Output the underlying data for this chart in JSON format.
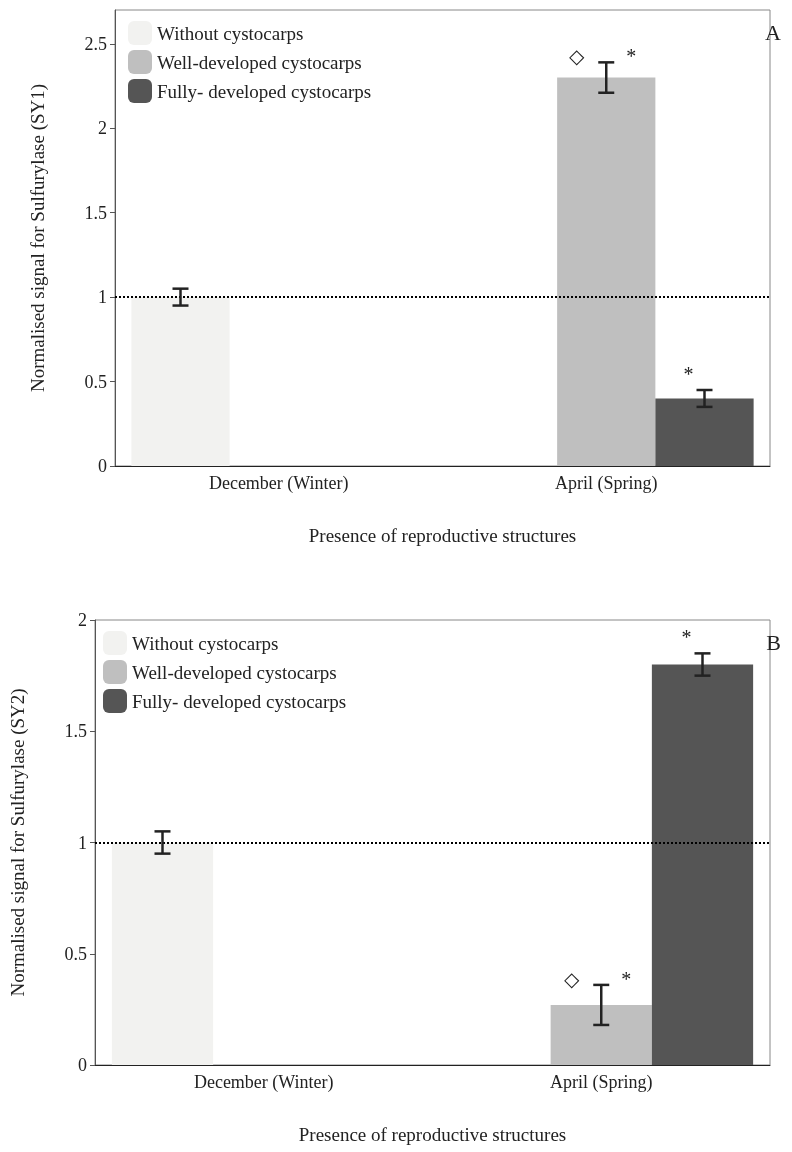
{
  "chart_data": [
    {
      "type": "bar",
      "title": "A",
      "xlabel": "Presence of reproductive structures",
      "ylabel": "Normalised signal for Sulfurylase (SY1)",
      "categories": [
        "December (Winter)",
        "April (Spring)"
      ],
      "series": [
        {
          "name": "Without cystocarps",
          "color": "#f2f2f0",
          "values": [
            1.0,
            null
          ],
          "errors": [
            0.05,
            null
          ]
        },
        {
          "name": "Well-developed cystocarps",
          "color": "#bfbfbf",
          "values": [
            null,
            2.3
          ],
          "errors": [
            null,
            0.09
          ]
        },
        {
          "name": "Fully- developed cystocarps",
          "color": "#555555",
          "values": [
            null,
            0.4
          ],
          "errors": [
            null,
            0.05
          ]
        }
      ],
      "ylim": [
        0,
        2.7
      ],
      "yticks": [
        0,
        0.5,
        1,
        1.5,
        2,
        2.5
      ],
      "grid": false,
      "legend": "top left",
      "ref_lines": [
        {
          "axis": "y",
          "value": 1,
          "line_style": "dotted",
          "color": "#000000"
        }
      ],
      "annotations": [
        {
          "text": "◇",
          "x": "April (Spring)",
          "y": 2.39
        },
        {
          "text": "*",
          "x": "April (Spring)",
          "y": 2.39
        },
        "*"
      ]
    },
    {
      "type": "bar",
      "title": "B",
      "xlabel": "Presence of reproductive structures",
      "ylabel": "Normalised signal for Sulfurylase (SY2)",
      "categories": [
        "December (Winter)",
        "April (Spring)"
      ],
      "series": [
        {
          "name": "Without cystocarps",
          "color": "#f2f2f0",
          "values": [
            1.0,
            null
          ],
          "errors": [
            0.05,
            null
          ]
        },
        {
          "name": "Well-developed cystocarps",
          "color": "#bfbfbf",
          "values": [
            null,
            0.27
          ],
          "errors": [
            null,
            0.09
          ]
        },
        {
          "name": "Fully- developed cystocarps",
          "color": "#555555",
          "values": [
            null,
            1.8
          ],
          "errors": [
            null,
            0.05
          ]
        }
      ],
      "ylim": [
        0,
        2
      ],
      "yticks": [
        0,
        0.5,
        1,
        1.5,
        2
      ],
      "grid": false,
      "legend": "top left",
      "ref_lines": [
        {
          "axis": "y",
          "value": 1,
          "line_style": "dotted",
          "color": "#000000"
        }
      ],
      "annotations": [
        {
          "text": "◇",
          "x": "April (Spring)",
          "y": 0.36
        },
        {
          "text": "*",
          "x": "April (Spring)",
          "y": 0.36
        },
        "*"
      ]
    }
  ]
}
